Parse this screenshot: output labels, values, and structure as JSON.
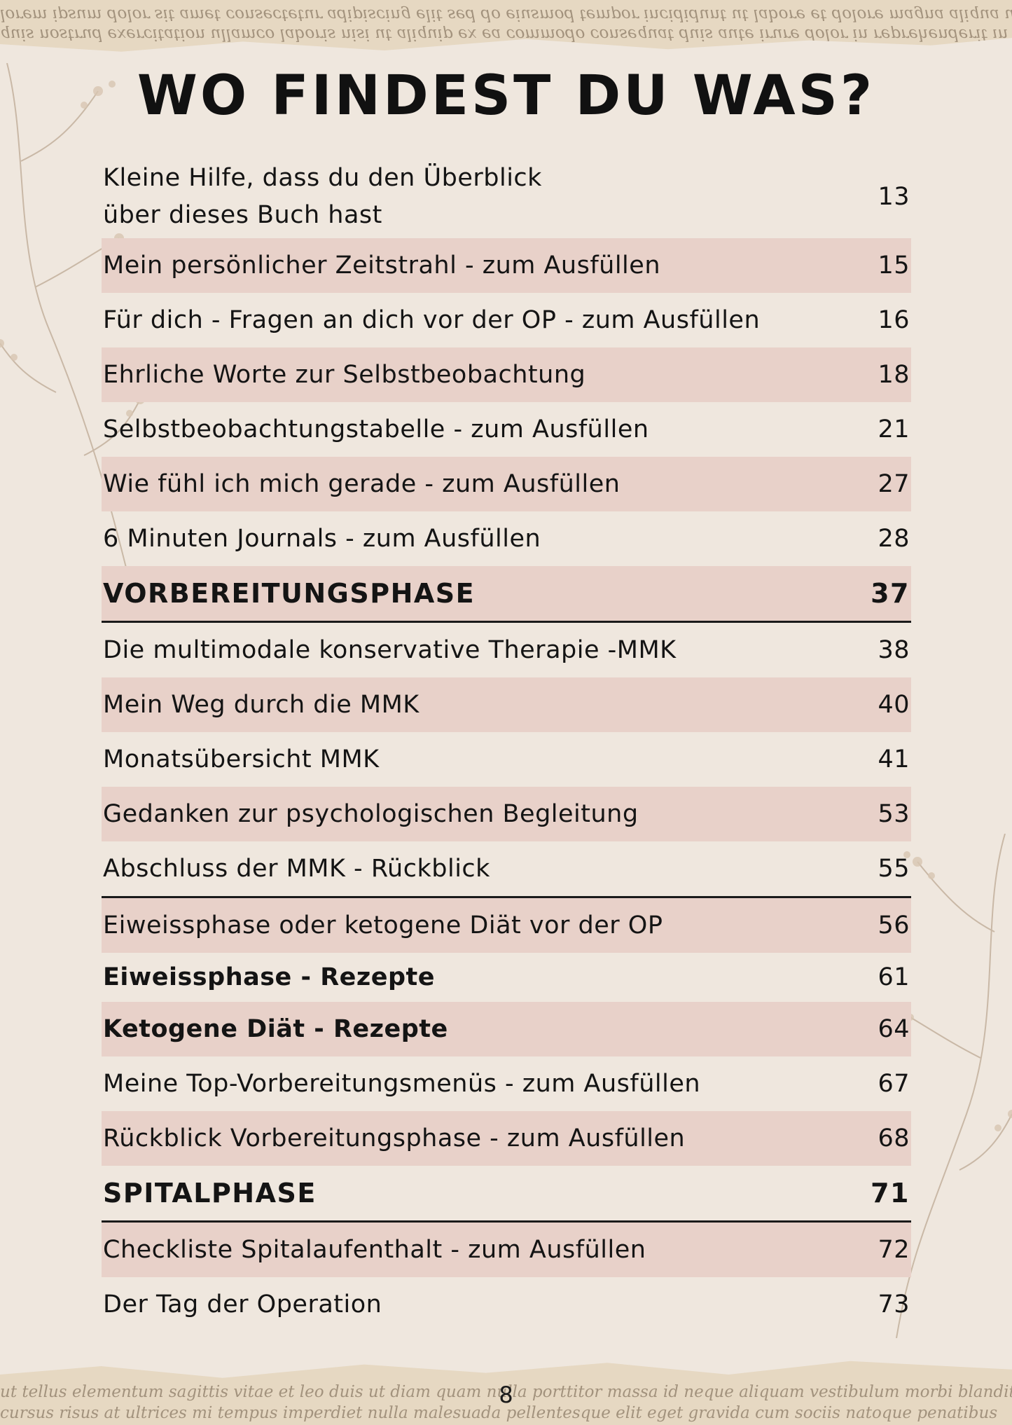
{
  "title": "WO FINDEST DU WAS?",
  "entries": [
    {
      "title": "Kleine Hilfe, dass du den Überblick\nüber dieses Buch hast",
      "page": "13"
    },
    {
      "title": "Mein persönlicher Zeitstrahl - zum Ausfüllen",
      "page": "15"
    },
    {
      "title": "Für dich - Fragen an dich vor der OP - zum Ausfüllen",
      "page": "16"
    },
    {
      "title": "Ehrliche Worte zur Selbstbeobachtung",
      "page": "18"
    },
    {
      "title": "Selbstbeobachtungstabelle - zum Ausfüllen",
      "page": "21"
    },
    {
      "title": "Wie fühl ich mich gerade - zum Ausfüllen",
      "page": "27"
    },
    {
      "title": "6 Minuten Journals - zum Ausfüllen",
      "page": "28"
    },
    {
      "title": "VORBEREITUNGSPHASE",
      "page": "37"
    },
    {
      "title": "Die multimodale konservative Therapie -MMK",
      "page": "38"
    },
    {
      "title": "Mein Weg durch die MMK",
      "page": "40"
    },
    {
      "title": "Monatsübersicht MMK",
      "page": "41"
    },
    {
      "title": "Gedanken zur psychologischen Begleitung",
      "page": "53"
    },
    {
      "title": "Abschluss der MMK - Rückblick",
      "page": "55"
    },
    {
      "title": "Eiweissphase oder ketogene Diät vor der OP",
      "page": "56"
    },
    {
      "title": "Eiweissphase - Rezepte",
      "page": "61"
    },
    {
      "title": "Ketogene Diät - Rezepte",
      "page": "64"
    },
    {
      "title": "Meine Top-Vorbereitungsmenüs - zum Ausfüllen",
      "page": "67"
    },
    {
      "title": "Rückblick Vorbereitungsphase - zum Ausfüllen",
      "page": "68"
    },
    {
      "title": "SPITALPHASE",
      "page": "71"
    },
    {
      "title": "Checkliste Spitalaufenthalt - zum Ausfüllen",
      "page": "72"
    },
    {
      "title": "Der Tag der Operation",
      "page": "73"
    }
  ],
  "page_number": "8",
  "colors": {
    "background": "#efe7de",
    "row_highlight": "#e8d1c9",
    "text": "#141414",
    "rule": "#1a1a1a"
  }
}
